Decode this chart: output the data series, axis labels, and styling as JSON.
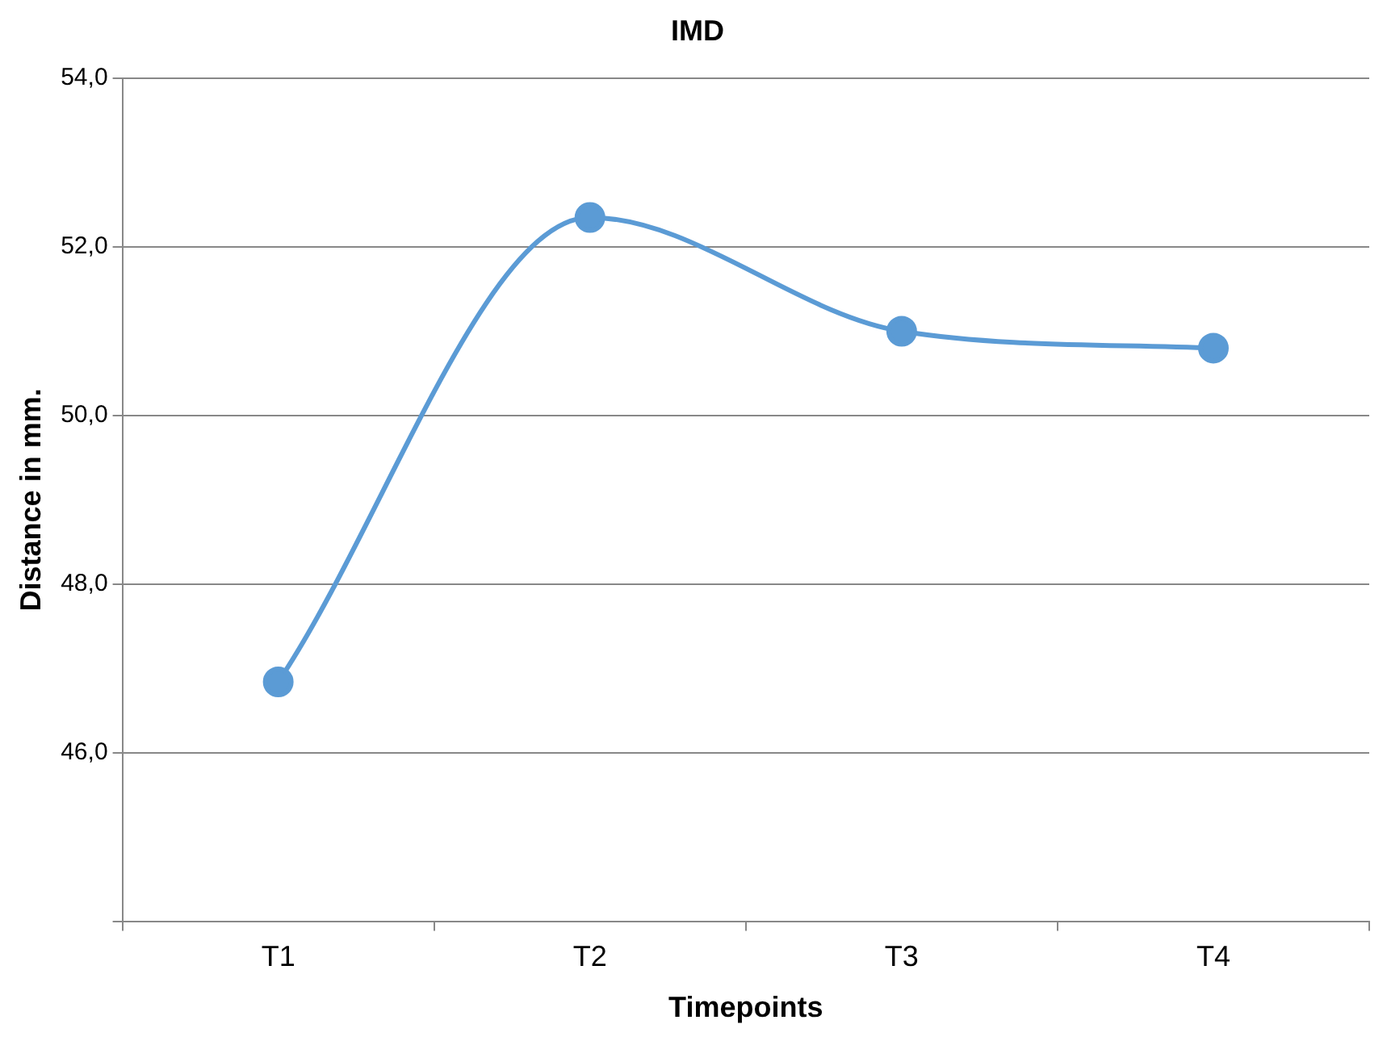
{
  "chart_data": {
    "type": "line",
    "title": "IMD",
    "xlabel": "Timepoints",
    "ylabel": "Distance in mm.",
    "categories": [
      "T1",
      "T2",
      "T3",
      "T4"
    ],
    "series": [
      {
        "color": "#5b9bd5",
        "values": [
          46.84,
          52.35,
          51.0,
          50.8
        ]
      }
    ],
    "ylim": [
      44,
      54
    ],
    "yticks": [
      {
        "value": 44,
        "label": null
      },
      {
        "value": 46,
        "label": "46,0"
      },
      {
        "value": 48,
        "label": "48,0"
      },
      {
        "value": 50,
        "label": "50,0"
      },
      {
        "value": 52,
        "label": "52,0"
      },
      {
        "value": 54,
        "label": "54,0"
      }
    ],
    "grid": "y",
    "legend": false,
    "marker": "circle",
    "line_style": "solid"
  }
}
